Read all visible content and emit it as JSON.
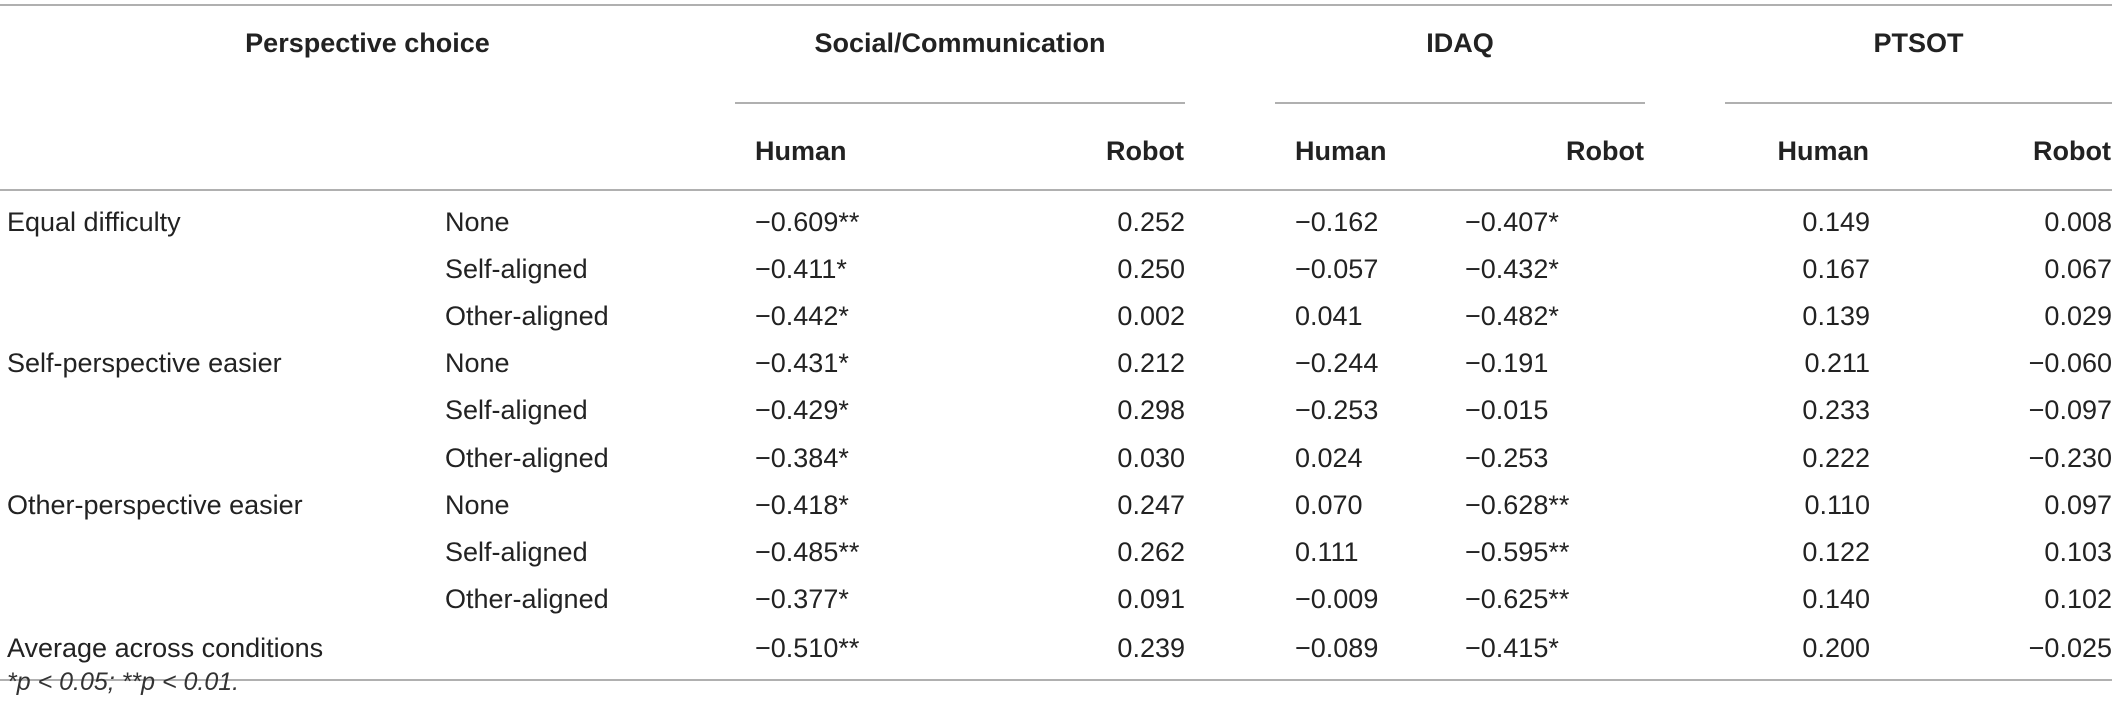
{
  "header": {
    "perspective_choice": "Perspective choice",
    "groups": [
      "Social/Communication",
      "IDAQ",
      "PTSOT"
    ],
    "sub": [
      "Human",
      "Robot",
      "Human",
      "Robot",
      "Human",
      "Robot"
    ]
  },
  "rows": [
    {
      "main": "Equal difficulty",
      "sub": "None",
      "v": [
        "−0.609**",
        "0.252",
        "−0.162",
        "−0.407*",
        "0.149",
        "0.008"
      ]
    },
    {
      "main": "",
      "sub": "Self-aligned",
      "v": [
        "−0.411*",
        "0.250",
        "−0.057",
        "−0.432*",
        "0.167",
        "0.067"
      ]
    },
    {
      "main": "",
      "sub": "Other-aligned",
      "v": [
        "−0.442*",
        "0.002",
        "0.041",
        "−0.482*",
        "0.139",
        "0.029"
      ]
    },
    {
      "main": "Self-perspective easier",
      "sub": "None",
      "v": [
        "−0.431*",
        "0.212",
        "−0.244",
        "−0.191",
        "0.211",
        "−0.060"
      ]
    },
    {
      "main": "",
      "sub": "Self-aligned",
      "v": [
        "−0.429*",
        "0.298",
        "−0.253",
        "−0.015",
        "0.233",
        "−0.097"
      ]
    },
    {
      "main": "",
      "sub": "Other-aligned",
      "v": [
        "−0.384*",
        "0.030",
        "0.024",
        "−0.253",
        "0.222",
        "−0.230"
      ]
    },
    {
      "main": "Other-perspective easier",
      "sub": "None",
      "v": [
        "−0.418*",
        "0.247",
        "0.070",
        "−0.628**",
        "0.110",
        "0.097"
      ]
    },
    {
      "main": "",
      "sub": "Self-aligned",
      "v": [
        "−0.485**",
        "0.262",
        "0.111",
        "−0.595**",
        "0.122",
        "0.103"
      ]
    },
    {
      "main": "",
      "sub": "Other-aligned",
      "v": [
        "−0.377*",
        "0.091",
        "−0.009",
        "−0.625**",
        "0.140",
        "0.102"
      ]
    },
    {
      "main": "Average across conditions",
      "sub": "",
      "v": [
        "−0.510**",
        "0.239",
        "−0.089",
        "−0.415*",
        "0.200",
        "−0.025"
      ]
    }
  ],
  "footnote": "*p < 0.05; **p < 0.01."
}
